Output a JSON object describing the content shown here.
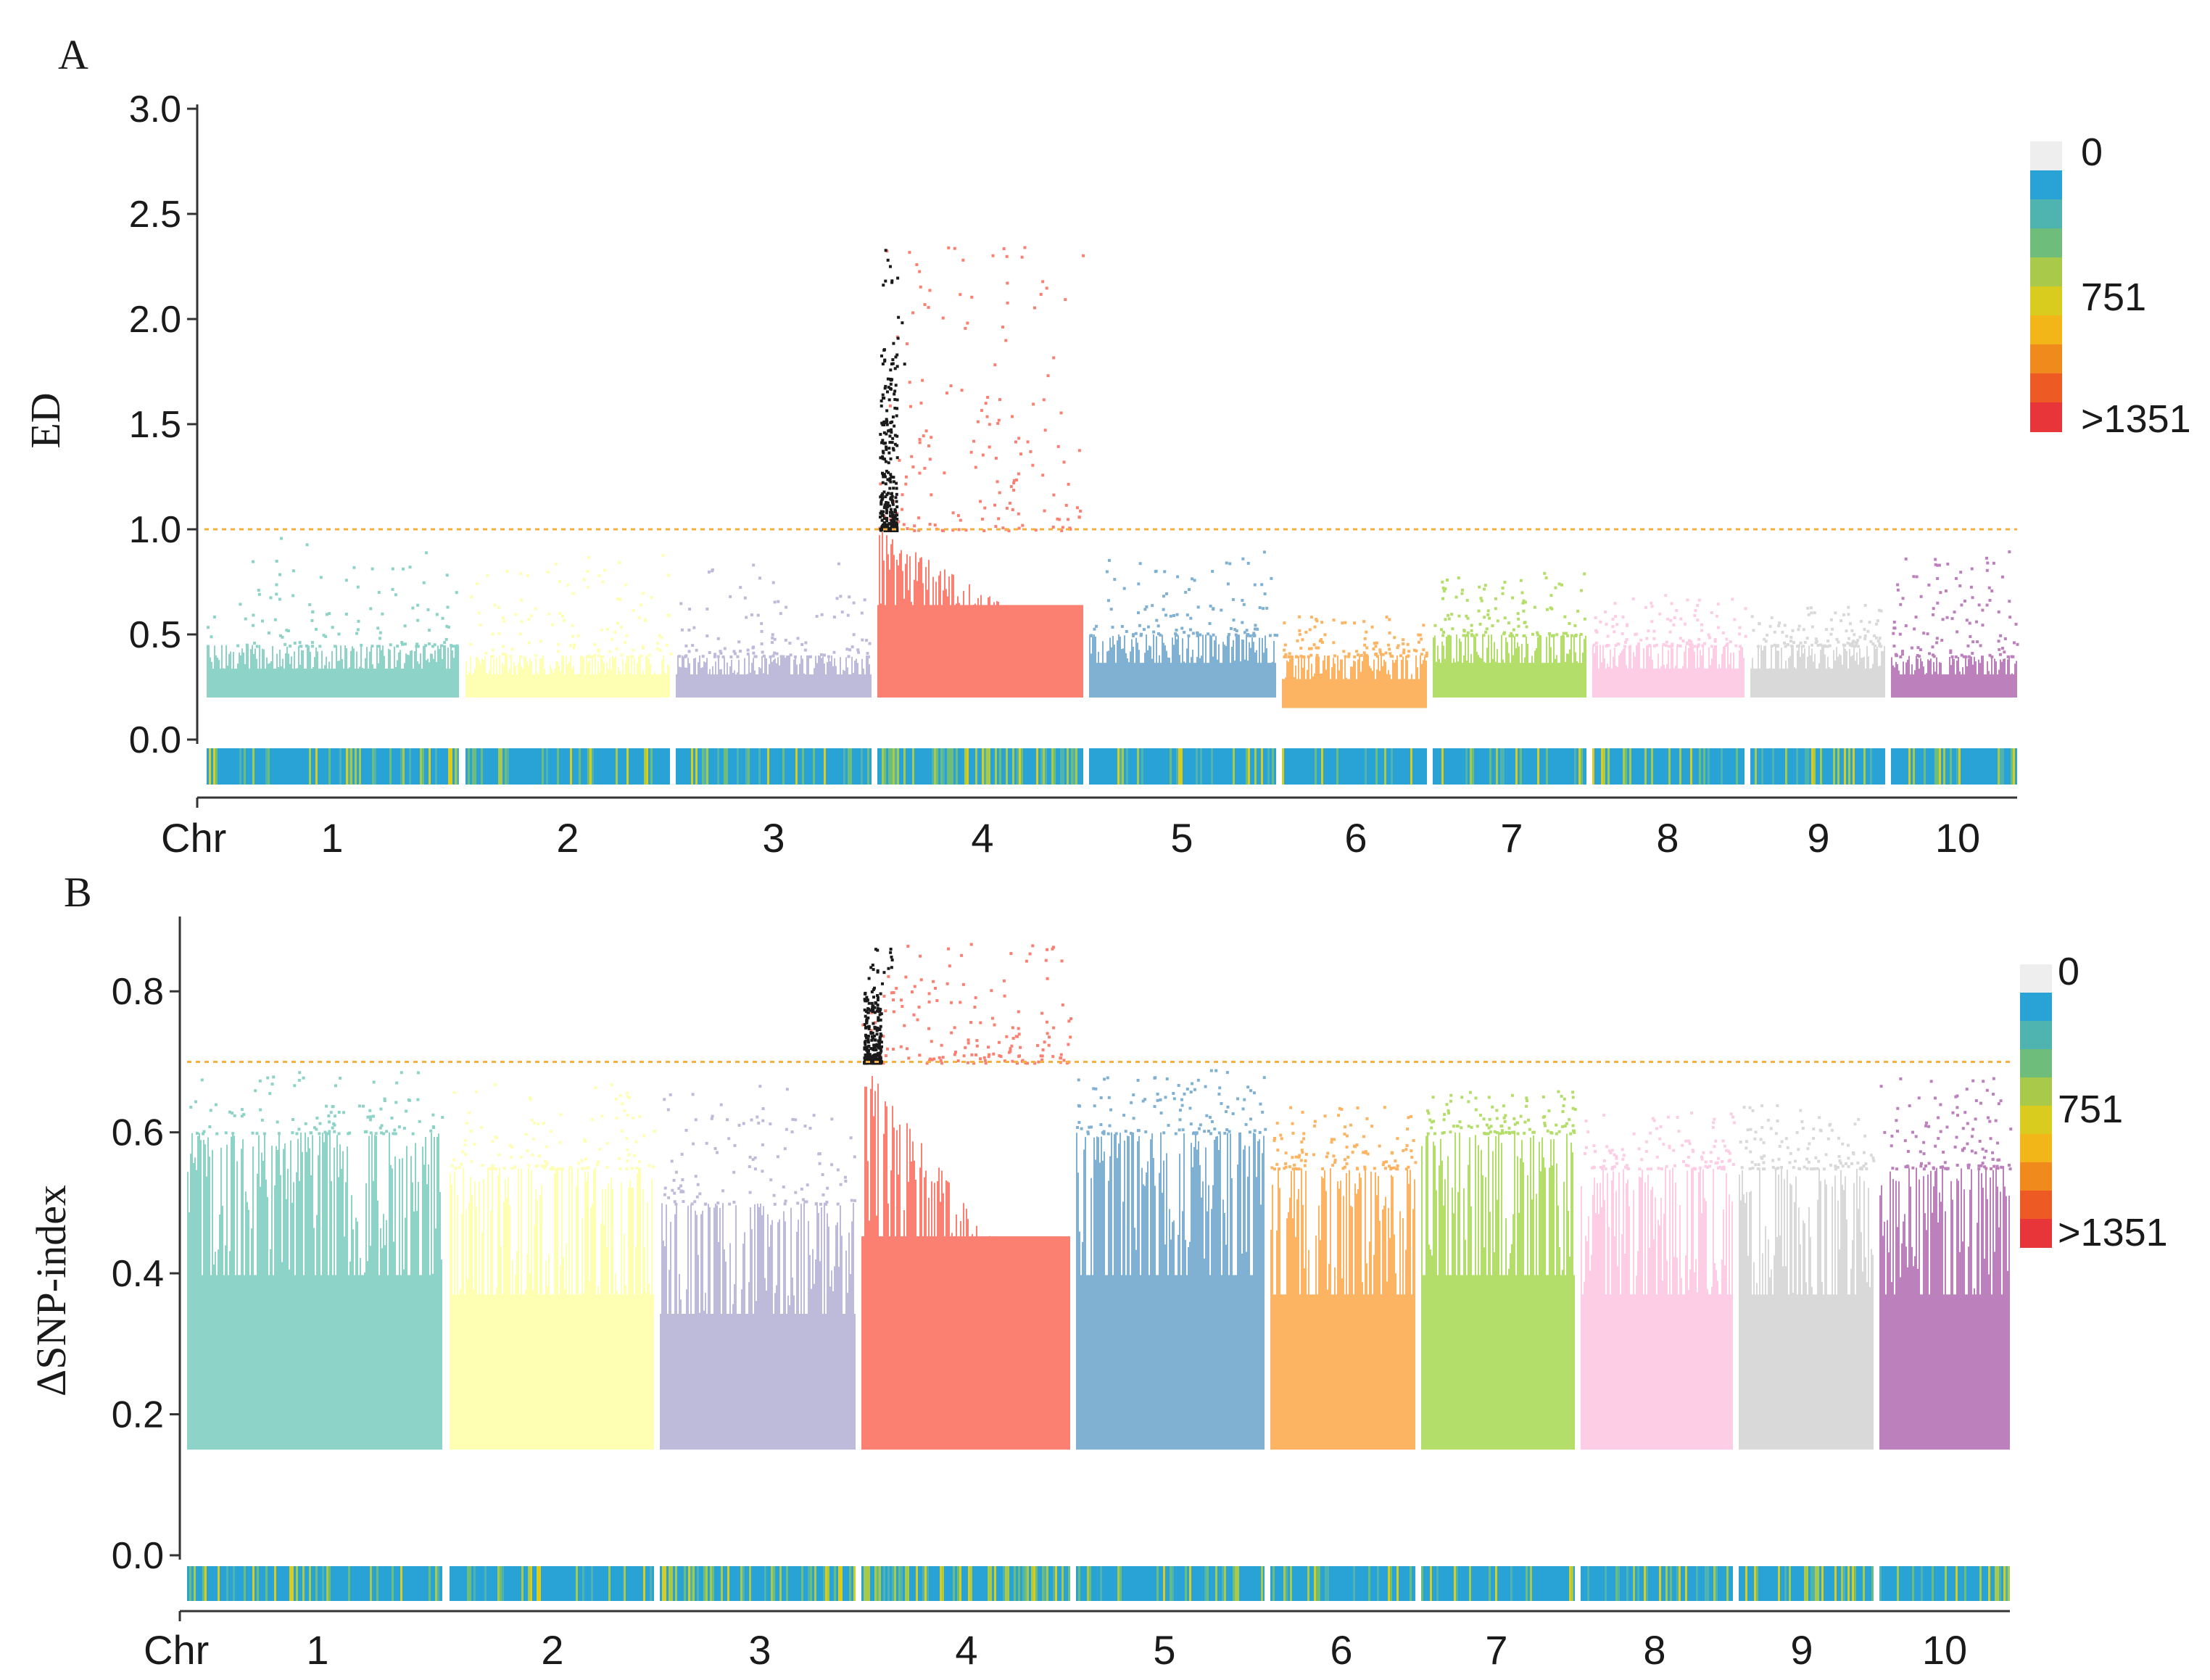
{
  "chart_data": [
    {
      "type": "scatter",
      "panel_label": "A",
      "title": "",
      "ylabel": "ED",
      "xlabel": "Chr",
      "ylim": [
        0,
        3.0
      ],
      "yticks": [
        "0.0",
        "0.5",
        "1.0",
        "1.5",
        "2.0",
        "2.5",
        "3.0"
      ],
      "threshold": 1.0,
      "threshold_color": "#f5b041",
      "categories": [
        "1",
        "2",
        "3",
        "4",
        "5",
        "6",
        "7",
        "8",
        "9",
        "10"
      ],
      "series": [
        {
          "name": "1",
          "color": "#8dd3c7",
          "base": 0.2,
          "typical_max": 0.45,
          "max": 0.97
        },
        {
          "name": "2",
          "color": "#ffffb3",
          "base": 0.2,
          "typical_max": 0.4,
          "max": 0.9
        },
        {
          "name": "3",
          "color": "#bebada",
          "base": 0.2,
          "typical_max": 0.4,
          "max": 0.85
        },
        {
          "name": "4",
          "color": "#fb8072",
          "base": 0.2,
          "typical_max": 1.0,
          "max": 2.35,
          "peak_color": "#1a1a1a"
        },
        {
          "name": "5",
          "color": "#80b1d3",
          "base": 0.2,
          "typical_max": 0.5,
          "max": 0.9
        },
        {
          "name": "6",
          "color": "#fdb462",
          "base": 0.15,
          "typical_max": 0.4,
          "max": 0.6
        },
        {
          "name": "7",
          "color": "#b3de69",
          "base": 0.2,
          "typical_max": 0.5,
          "max": 0.8
        },
        {
          "name": "8",
          "color": "#fccde5",
          "base": 0.2,
          "typical_max": 0.45,
          "max": 0.7
        },
        {
          "name": "9",
          "color": "#d9d9d9",
          "base": 0.2,
          "typical_max": 0.45,
          "max": 0.65
        },
        {
          "name": "10",
          "color": "#bc80bd",
          "base": 0.2,
          "typical_max": 0.4,
          "max": 0.9
        }
      ],
      "density_legend": {
        "labels": [
          "0",
          "751",
          ">1351"
        ],
        "colors": [
          "#eeeeee",
          "#29a3d6",
          "#4fb3b0",
          "#6fbd7a",
          "#a8c94a",
          "#d9cc1f",
          "#f2b619",
          "#f08a1c",
          "#ee5a24",
          "#e8353a"
        ]
      }
    },
    {
      "type": "scatter",
      "panel_label": "B",
      "title": "",
      "ylabel": "ΔSNP-index",
      "xlabel": "Chr",
      "ylim": [
        0,
        0.9
      ],
      "yticks": [
        "0.0",
        "0.2",
        "0.4",
        "0.6",
        "0.8"
      ],
      "threshold": 0.7,
      "threshold_color": "#f5b041",
      "categories": [
        "1",
        "2",
        "3",
        "4",
        "5",
        "6",
        "7",
        "8",
        "9",
        "10"
      ],
      "series": [
        {
          "name": "1",
          "color": "#8dd3c7",
          "base": 0.15,
          "typical_max": 0.6,
          "max": 0.69
        },
        {
          "name": "2",
          "color": "#ffffb3",
          "base": 0.15,
          "typical_max": 0.55,
          "max": 0.68
        },
        {
          "name": "3",
          "color": "#bebada",
          "base": 0.15,
          "typical_max": 0.5,
          "max": 0.67
        },
        {
          "name": "4",
          "color": "#fb8072",
          "base": 0.15,
          "typical_max": 0.7,
          "max": 0.87,
          "peak_color": "#1a1a1a"
        },
        {
          "name": "5",
          "color": "#80b1d3",
          "base": 0.15,
          "typical_max": 0.6,
          "max": 0.69
        },
        {
          "name": "6",
          "color": "#fdb462",
          "base": 0.15,
          "typical_max": 0.55,
          "max": 0.64
        },
        {
          "name": "7",
          "color": "#b3de69",
          "base": 0.15,
          "typical_max": 0.6,
          "max": 0.66
        },
        {
          "name": "8",
          "color": "#fccde5",
          "base": 0.15,
          "typical_max": 0.55,
          "max": 0.63
        },
        {
          "name": "9",
          "color": "#d9d9d9",
          "base": 0.15,
          "typical_max": 0.55,
          "max": 0.64
        },
        {
          "name": "10",
          "color": "#bc80bd",
          "base": 0.15,
          "typical_max": 0.55,
          "max": 0.68
        }
      ],
      "density_legend": {
        "labels": [
          "0",
          "751",
          ">1351"
        ],
        "colors": [
          "#eeeeee",
          "#29a3d6",
          "#4fb3b0",
          "#6fbd7a",
          "#a8c94a",
          "#d9cc1f",
          "#f2b619",
          "#f08a1c",
          "#ee5a24",
          "#e8353a"
        ]
      }
    }
  ]
}
